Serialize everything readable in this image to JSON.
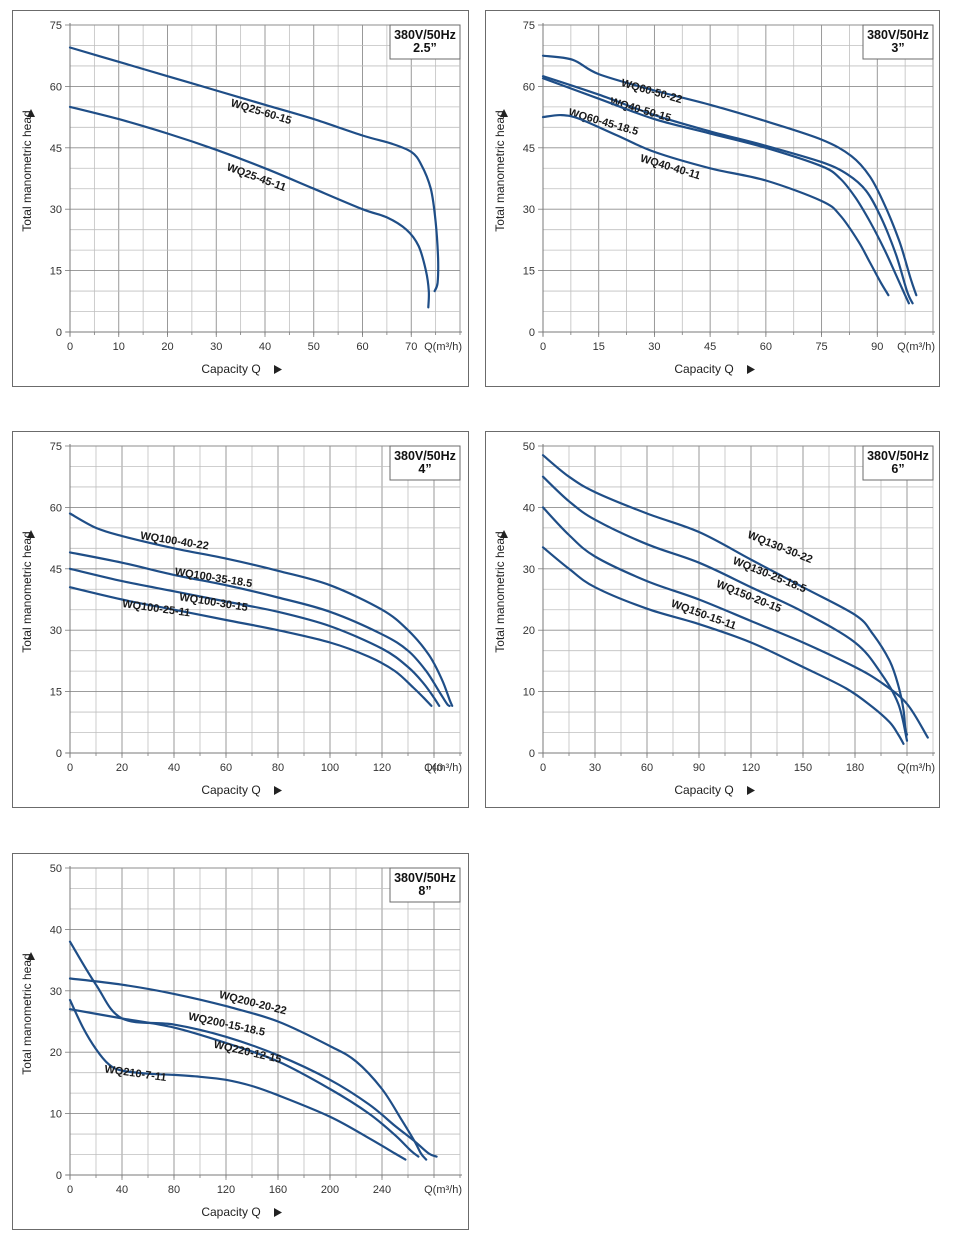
{
  "chart_data": [
    {
      "type": "line",
      "box_lines": [
        "380V/50Hz",
        "2.5”"
      ],
      "ylabel": "Total manometric head",
      "xlabel": "Capacity Q",
      "xunit": "Q(m³/h)",
      "xlim": [
        0,
        80
      ],
      "ylim": [
        0,
        75
      ],
      "xticks": [
        0,
        10,
        20,
        30,
        40,
        50,
        60,
        70
      ],
      "xtick_labels": [
        "0",
        "10",
        "20",
        "30",
        "40",
        "50",
        "60",
        "70"
      ],
      "yticks": [
        0,
        15,
        30,
        45,
        60,
        75
      ],
      "ytick_labels": [
        "0",
        "15",
        "30",
        "45",
        "60",
        "75"
      ],
      "series": [
        {
          "name": "WQ25-60-15",
          "label_at": [
            39,
            53
          ],
          "label_rot": 17,
          "x": [
            0,
            10,
            20,
            30,
            40,
            50,
            60,
            66,
            70,
            72,
            74,
            75,
            75.5,
            75.4,
            74.8
          ],
          "y": [
            69.5,
            66,
            62.5,
            59,
            55.5,
            52,
            48,
            46,
            44,
            41,
            35,
            27,
            18,
            12,
            10
          ]
        },
        {
          "name": "WQ25-45-11",
          "label_at": [
            38,
            37
          ],
          "label_rot": 20,
          "x": [
            0,
            10,
            20,
            30,
            40,
            50,
            60,
            65,
            69,
            71.5,
            73,
            73.6,
            73.5
          ],
          "y": [
            55,
            52,
            48.5,
            44.5,
            40,
            35,
            30,
            28,
            25,
            21,
            15,
            10,
            6
          ]
        }
      ]
    },
    {
      "type": "line",
      "box_lines": [
        "380V/50Hz",
        "3”"
      ],
      "ylabel": "Total manometric head",
      "xlabel": "Capacity Q",
      "xunit": "Q(m³/h)",
      "xlim": [
        0,
        105
      ],
      "ylim": [
        0,
        75
      ],
      "xticks": [
        0,
        15,
        30,
        45,
        60,
        75,
        90
      ],
      "xtick_labels": [
        "0",
        "15",
        "30",
        "45",
        "60",
        "75",
        "90"
      ],
      "yticks": [
        0,
        15,
        30,
        45,
        60,
        75
      ],
      "ytick_labels": [
        "0",
        "15",
        "30",
        "45",
        "60",
        "75"
      ],
      "series": [
        {
          "name": "WQ60-50-22",
          "label_at": [
            29,
            58
          ],
          "label_rot": 16,
          "x": [
            0,
            8,
            15,
            30,
            45,
            60,
            75,
            83,
            88,
            92,
            96,
            99,
            100.5
          ],
          "y": [
            67.5,
            66.5,
            63,
            59,
            55.5,
            51.5,
            47,
            43,
            38,
            31,
            22,
            13,
            9
          ]
        },
        {
          "name": "WQ40-50-15",
          "label_at": [
            26,
            53.5
          ],
          "label_rot": 16,
          "x": [
            0,
            15,
            30,
            45,
            60,
            75,
            82,
            87,
            91,
            95,
            98,
            99.5
          ],
          "y": [
            62.5,
            58,
            53,
            49,
            45.5,
            41.5,
            38.5,
            34.5,
            28,
            19,
            10,
            7
          ]
        },
        {
          "name": "WQ60-45-18.5",
          "label_at": [
            16,
            50.5
          ],
          "label_rot": 16,
          "x": [
            0,
            15,
            30,
            45,
            60,
            75,
            80,
            84,
            88,
            92,
            95,
            97.5,
            98.5
          ],
          "y": [
            62,
            57,
            52,
            48.5,
            45,
            40.5,
            37.5,
            33,
            27,
            20,
            14,
            9,
            7
          ]
        },
        {
          "name": "WQ40-40-11",
          "label_at": [
            34,
            39.5
          ],
          "label_rot": 17,
          "x": [
            0,
            5,
            10,
            20,
            30,
            45,
            60,
            75,
            80,
            85,
            88,
            91,
            93
          ],
          "y": [
            52.5,
            53,
            52,
            48,
            44,
            40,
            37,
            32,
            28.5,
            22,
            17,
            12,
            9
          ]
        }
      ]
    },
    {
      "type": "line",
      "box_lines": [
        "380V/50Hz",
        "4”"
      ],
      "ylabel": "Total manometric head",
      "xlabel": "Capacity Q",
      "xunit": "Q(m³/h)",
      "xlim": [
        0,
        150
      ],
      "ylim": [
        0,
        75
      ],
      "xticks": [
        0,
        20,
        40,
        60,
        80,
        100,
        120,
        140
      ],
      "xtick_labels": [
        "0",
        "20",
        "40",
        "60",
        "80",
        "100",
        "120",
        "140"
      ],
      "yticks": [
        0,
        15,
        30,
        45,
        60,
        75
      ],
      "ytick_labels": [
        "0",
        "15",
        "30",
        "45",
        "60",
        "75"
      ],
      "series": [
        {
          "name": "WQ100-40-22",
          "label_at": [
            40,
            51
          ],
          "label_rot": 9,
          "x": [
            0,
            10,
            20,
            40,
            60,
            80,
            100,
            120,
            130,
            138,
            143,
            146,
            147
          ],
          "y": [
            58.5,
            55,
            53,
            50,
            47.5,
            44.5,
            41,
            35,
            30,
            24,
            18,
            13,
            11.5
          ]
        },
        {
          "name": "WQ100-35-18.5",
          "label_at": [
            55,
            42
          ],
          "label_rot": 9,
          "x": [
            0,
            20,
            40,
            60,
            80,
            100,
            120,
            130,
            137,
            142,
            145,
            146
          ],
          "y": [
            49,
            46.5,
            43.5,
            41,
            38,
            34.5,
            29,
            25,
            20,
            15,
            12,
            11.5
          ]
        },
        {
          "name": "WQ100-30-15",
          "label_at": [
            55,
            36
          ],
          "label_rot": 9,
          "x": [
            0,
            20,
            40,
            60,
            80,
            100,
            120,
            130,
            136,
            140,
            142
          ],
          "y": [
            45,
            42,
            39.5,
            37,
            34.5,
            31,
            25.5,
            21,
            17,
            13.5,
            11.5
          ]
        },
        {
          "name": "WQ100-25-11",
          "label_at": [
            33,
            34.5
          ],
          "label_rot": 8,
          "x": [
            0,
            20,
            40,
            60,
            80,
            100,
            115,
            125,
            132,
            136,
            139
          ],
          "y": [
            40.5,
            37.5,
            35,
            32.5,
            30,
            27,
            23.5,
            20,
            16,
            13.5,
            11.5
          ]
        }
      ]
    },
    {
      "type": "line",
      "box_lines": [
        "380V/50Hz",
        "6”"
      ],
      "ylabel": "Total manometric head",
      "xlabel": "Capacity Q",
      "xunit": "Q(m³/h)",
      "xlim": [
        0,
        225
      ],
      "ylim": [
        0,
        50
      ],
      "xticks": [
        0,
        30,
        60,
        90,
        120,
        150,
        180
      ],
      "xtick_labels": [
        "0",
        "30",
        "60",
        "90",
        "120",
        "150",
        "180"
      ],
      "yticks": [
        0,
        10,
        20,
        30,
        40,
        50
      ],
      "ytick_labels": [
        "0",
        "10",
        "20",
        "30",
        "40",
        "50"
      ],
      "series": [
        {
          "name": "WQ130-30-22",
          "label_at": [
            136,
            33
          ],
          "label_rot": 22,
          "x": [
            0,
            15,
            30,
            60,
            90,
            120,
            150,
            180,
            190,
            200,
            205,
            208,
            209,
            210
          ],
          "y": [
            48.5,
            45,
            42.5,
            39,
            36,
            31.5,
            27,
            22.5,
            19.5,
            15,
            11,
            7,
            4,
            3
          ]
        },
        {
          "name": "WQ130-25-18.5",
          "label_at": [
            130,
            28.5
          ],
          "label_rot": 22,
          "x": [
            0,
            15,
            30,
            60,
            90,
            120,
            150,
            180,
            195,
            205,
            210
          ],
          "y": [
            45,
            41,
            38,
            34,
            31,
            27,
            23,
            18,
            13,
            8,
            2
          ]
        },
        {
          "name": "WQ150-20-15",
          "label_at": [
            118,
            25
          ],
          "label_rot": 22,
          "x": [
            0,
            15,
            30,
            60,
            90,
            120,
            150,
            180,
            195,
            210,
            222
          ],
          "y": [
            40,
            35.5,
            32,
            28,
            25,
            21.5,
            18,
            14,
            11.5,
            8,
            2.5
          ]
        },
        {
          "name": "WQ150-15-11",
          "label_at": [
            92,
            22
          ],
          "label_rot": 20,
          "x": [
            0,
            15,
            30,
            60,
            90,
            120,
            150,
            175,
            190,
            200,
            205,
            208
          ],
          "y": [
            33.5,
            30,
            27,
            23.5,
            21,
            18,
            14,
            10.5,
            7.5,
            5,
            3,
            1.5
          ]
        }
      ]
    },
    {
      "type": "line",
      "box_lines": [
        "380V/50Hz",
        "8”"
      ],
      "ylabel": "Total manometric head",
      "xlabel": "Capacity Q",
      "xunit": "Q(m³/h)",
      "xlim": [
        0,
        300
      ],
      "ylim": [
        0,
        50
      ],
      "xticks": [
        0,
        40,
        80,
        120,
        160,
        200,
        240
      ],
      "xtick_labels": [
        "0",
        "40",
        "80",
        "120",
        "160",
        "200",
        "240"
      ],
      "yticks": [
        0,
        10,
        20,
        30,
        40,
        50
      ],
      "ytick_labels": [
        "0",
        "10",
        "20",
        "30",
        "40",
        "50"
      ],
      "series": [
        {
          "name": "WQ200-20-22",
          "label_at": [
            140,
            27.5
          ],
          "label_rot": 14,
          "x": [
            0,
            40,
            80,
            120,
            160,
            200,
            220,
            240,
            255,
            265,
            270,
            274
          ],
          "y": [
            32,
            31,
            29.5,
            27.5,
            25,
            21,
            18.5,
            14,
            9,
            5.5,
            3.5,
            2.5
          ]
        },
        {
          "name": "WQ200-15-18.5",
          "label_at": [
            120,
            24
          ],
          "label_rot": 12,
          "x": [
            0,
            20,
            40,
            80,
            120,
            160,
            200,
            230,
            250,
            265,
            276,
            282
          ],
          "y": [
            38,
            31,
            25.5,
            24.5,
            22.5,
            19.5,
            15.5,
            11.5,
            8,
            5.5,
            3.5,
            3
          ]
        },
        {
          "name": "WQ220-12-15",
          "label_at": [
            136,
            19.5
          ],
          "label_rot": 13,
          "x": [
            0,
            40,
            80,
            120,
            160,
            200,
            230,
            250,
            262,
            268
          ],
          "y": [
            27,
            25.5,
            24,
            21.5,
            18.5,
            14,
            10,
            6.5,
            4,
            3
          ]
        },
        {
          "name": "WQ210-7-11",
          "label_at": [
            50,
            16
          ],
          "label_rot": 8,
          "x": [
            0,
            10,
            20,
            30,
            40,
            60,
            80,
            100,
            120,
            140,
            160,
            200,
            230,
            250,
            258
          ],
          "y": [
            28.5,
            24,
            20.5,
            18,
            17,
            16.5,
            16.3,
            16,
            15.5,
            14.5,
            13,
            9.5,
            6,
            3.5,
            2.5
          ]
        }
      ]
    }
  ]
}
